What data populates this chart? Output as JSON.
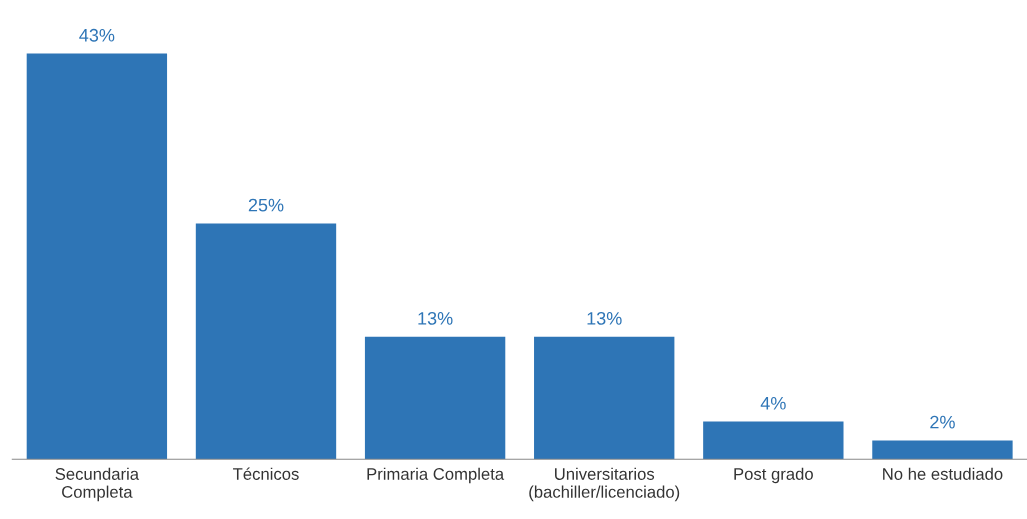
{
  "chart_data": {
    "type": "bar",
    "categories": [
      "Secundaria\nCompleta",
      "Técnicos",
      "Primaria Completa",
      "Universitarios\n(bachiller/licenciado)",
      "Post grado",
      "No he estudiado"
    ],
    "values": [
      43,
      25,
      13,
      13,
      4,
      2
    ],
    "value_labels": [
      "43%",
      "25%",
      "13%",
      "13%",
      "4%",
      "2%"
    ],
    "color": "#2e75b6",
    "grid": false,
    "legend": false
  }
}
